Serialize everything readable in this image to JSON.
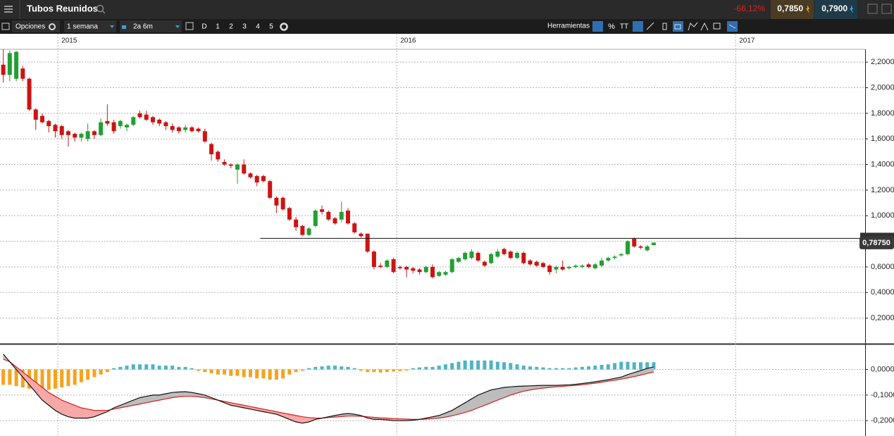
{
  "header": {
    "title": "Tubos Reunidos",
    "change": "-66,12%",
    "bid": "0,7850",
    "ask": "0,7900"
  },
  "toolbar": {
    "options": "Opciones",
    "interval": "1 semana",
    "range": "2a 6m",
    "periods": [
      "D",
      "1",
      "2",
      "3",
      "4",
      "5"
    ],
    "tools": "Herramientas",
    "percent": "%",
    "text_tool": "TT"
  },
  "chart_data": [
    {
      "type": "candlestick",
      "up_color": "#22a032",
      "down_color": "#cc1414",
      "xlim": [
        -0.5,
        132.5
      ],
      "xticks": [
        {
          "value": 8.4,
          "label": "2015"
        },
        {
          "value": 60.5,
          "label": "2016"
        },
        {
          "value": 112.6,
          "label": "2017"
        }
      ],
      "ylim": [
        0,
        2.3
      ],
      "yticks": [
        {
          "value": 0.2,
          "label": "0,2000"
        },
        {
          "value": 0.4,
          "label": "0,4000"
        },
        {
          "value": 0.6,
          "label": "0,6000"
        },
        {
          "value": 0.8,
          "label": "0,8000"
        },
        {
          "value": 1.0,
          "label": "1,0000"
        },
        {
          "value": 1.2,
          "label": "1,2000"
        },
        {
          "value": 1.4,
          "label": "1,4000"
        },
        {
          "value": 1.6,
          "label": "1,6000"
        },
        {
          "value": 1.8,
          "label": "1,8000"
        },
        {
          "value": 2.0,
          "label": "2,0000"
        },
        {
          "value": 2.2,
          "label": "2,2000"
        }
      ],
      "grid": true,
      "hline": 0.823,
      "last_price": {
        "value": 0.7875,
        "label": "0,78750"
      },
      "open": [
        2.18,
        2.1,
        2.07,
        2.15,
        2.07,
        1.83,
        1.78,
        1.74,
        1.71,
        1.7,
        1.66,
        1.64,
        1.61,
        1.6,
        1.66,
        1.63,
        1.74,
        1.73,
        1.7,
        1.69,
        1.71,
        1.8,
        1.79,
        1.77,
        1.75,
        1.73,
        1.7,
        1.69,
        1.67,
        1.69,
        1.68,
        1.66,
        1.56,
        1.5,
        1.42,
        1.4,
        1.36,
        1.4,
        1.33,
        1.31,
        1.31,
        1.27,
        1.14,
        1.14,
        1.06,
        0.97,
        0.92,
        0.85,
        0.92,
        1.05,
        1.03,
        0.98,
        0.97,
        1.04,
        0.94,
        0.86,
        0.86,
        0.72,
        0.61,
        0.6,
        0.66,
        0.6,
        0.6,
        0.59,
        0.58,
        0.56,
        0.6,
        0.53,
        0.54,
        0.56,
        0.64,
        0.66,
        0.67,
        0.71,
        0.64,
        0.63,
        0.68,
        0.74,
        0.72,
        0.67,
        0.71,
        0.65,
        0.64,
        0.63,
        0.61,
        0.58,
        0.6,
        0.59,
        0.6,
        0.6,
        0.62,
        0.59,
        0.61,
        0.65,
        0.67,
        0.69,
        0.7,
        0.82,
        0.76,
        0.73,
        0.77
      ],
      "high": [
        2.3,
        2.29,
        2.29,
        2.17,
        2.08,
        1.84,
        1.8,
        1.75,
        1.72,
        1.71,
        1.67,
        1.65,
        1.65,
        1.72,
        1.67,
        1.76,
        1.87,
        1.75,
        1.75,
        1.72,
        1.78,
        1.82,
        1.82,
        1.78,
        1.76,
        1.74,
        1.72,
        1.7,
        1.71,
        1.7,
        1.69,
        1.68,
        1.57,
        1.51,
        1.44,
        1.41,
        1.41,
        1.44,
        1.34,
        1.32,
        1.32,
        1.28,
        1.15,
        1.15,
        1.07,
        0.99,
        0.93,
        0.91,
        1.05,
        1.08,
        1.04,
        0.99,
        1.11,
        1.06,
        0.95,
        0.87,
        0.86,
        0.73,
        0.63,
        0.66,
        0.67,
        0.61,
        0.61,
        0.6,
        0.59,
        0.61,
        0.62,
        0.57,
        0.57,
        0.67,
        0.68,
        0.72,
        0.74,
        0.72,
        0.65,
        0.71,
        0.74,
        0.75,
        0.73,
        0.72,
        0.72,
        0.66,
        0.65,
        0.64,
        0.62,
        0.61,
        0.65,
        0.61,
        0.62,
        0.62,
        0.63,
        0.63,
        0.67,
        0.68,
        0.69,
        0.71,
        0.81,
        0.83,
        0.77,
        0.77,
        0.79
      ],
      "low": [
        2.04,
        2.05,
        2.05,
        2.05,
        1.82,
        1.67,
        1.72,
        1.65,
        1.61,
        1.6,
        1.54,
        1.58,
        1.58,
        1.58,
        1.6,
        1.62,
        1.7,
        1.64,
        1.68,
        1.66,
        1.7,
        1.76,
        1.74,
        1.71,
        1.7,
        1.67,
        1.65,
        1.64,
        1.65,
        1.65,
        1.65,
        1.57,
        1.43,
        1.42,
        1.39,
        1.37,
        1.25,
        1.32,
        1.29,
        1.23,
        1.26,
        1.13,
        1.02,
        1.04,
        0.96,
        0.88,
        0.84,
        0.84,
        0.91,
        1.01,
        0.96,
        0.93,
        0.95,
        0.93,
        0.86,
        0.83,
        0.71,
        0.58,
        0.59,
        0.59,
        0.55,
        0.58,
        0.52,
        0.55,
        0.54,
        0.55,
        0.51,
        0.52,
        0.53,
        0.55,
        0.63,
        0.65,
        0.66,
        0.64,
        0.6,
        0.62,
        0.67,
        0.69,
        0.66,
        0.66,
        0.62,
        0.61,
        0.6,
        0.59,
        0.54,
        0.55,
        0.57,
        0.58,
        0.59,
        0.59,
        0.59,
        0.58,
        0.6,
        0.64,
        0.66,
        0.68,
        0.69,
        0.75,
        0.74,
        0.72,
        0.77
      ],
      "close": [
        2.1,
        2.27,
        2.28,
        2.07,
        1.83,
        1.75,
        1.73,
        1.7,
        1.66,
        1.63,
        1.63,
        1.61,
        1.64,
        1.66,
        1.63,
        1.73,
        1.72,
        1.66,
        1.74,
        1.71,
        1.77,
        1.77,
        1.75,
        1.73,
        1.72,
        1.7,
        1.67,
        1.66,
        1.69,
        1.66,
        1.66,
        1.58,
        1.48,
        1.44,
        1.4,
        1.39,
        1.4,
        1.33,
        1.3,
        1.26,
        1.27,
        1.14,
        1.08,
        1.05,
        0.97,
        0.91,
        0.85,
        0.9,
        1.04,
        1.03,
        0.97,
        0.94,
        1.03,
        0.94,
        0.87,
        0.84,
        0.72,
        0.6,
        0.6,
        0.65,
        0.56,
        0.59,
        0.58,
        0.57,
        0.56,
        0.6,
        0.52,
        0.56,
        0.56,
        0.66,
        0.67,
        0.71,
        0.72,
        0.65,
        0.61,
        0.7,
        0.72,
        0.7,
        0.67,
        0.71,
        0.63,
        0.62,
        0.61,
        0.6,
        0.56,
        0.6,
        0.58,
        0.6,
        0.61,
        0.61,
        0.6,
        0.62,
        0.65,
        0.67,
        0.68,
        0.7,
        0.8,
        0.76,
        0.75,
        0.76,
        0.79
      ]
    },
    {
      "type": "macd",
      "pos_color": "#4fb4c6",
      "neg_color": "#f5a31e",
      "macd_color": "#111111",
      "signal_color": "#d81e1e",
      "above_fill": "#bdbdbd",
      "below_fill": "#f7a8a8",
      "xlim": [
        -0.5,
        132.5
      ],
      "ylim": [
        -0.26,
        0.095
      ],
      "yticks": [
        {
          "value": 0,
          "label": "0,0000"
        },
        {
          "value": -0.1,
          "label": "-0,1000"
        },
        {
          "value": -0.2,
          "label": "-0,2000"
        }
      ],
      "grid": true,
      "histogram": [
        -0.06,
        -0.06,
        -0.065,
        -0.07,
        -0.075,
        -0.08,
        -0.08,
        -0.08,
        -0.075,
        -0.07,
        -0.065,
        -0.06,
        -0.05,
        -0.04,
        -0.03,
        -0.02,
        -0.01,
        0.005,
        0.01,
        0.015,
        0.02,
        0.02,
        0.02,
        0.02,
        0.015,
        0.015,
        0.015,
        0.01,
        0.01,
        0.005,
        -0.005,
        -0.01,
        -0.015,
        -0.02,
        -0.02,
        -0.025,
        -0.025,
        -0.03,
        -0.03,
        -0.035,
        -0.035,
        -0.04,
        -0.04,
        -0.035,
        -0.02,
        -0.01,
        -0.005,
        0.005,
        0.01,
        0.012,
        0.015,
        0.015,
        0.012,
        0.01,
        0.005,
        -0.005,
        -0.01,
        -0.01,
        -0.012,
        -0.01,
        -0.008,
        -0.006,
        -0.004,
        0.005,
        0.008,
        0.01,
        0.01,
        0.015,
        0.02,
        0.025,
        0.03,
        0.035,
        0.035,
        0.035,
        0.035,
        0.035,
        0.03,
        0.028,
        0.025,
        0.02,
        0.015,
        0.012,
        0.01,
        0.008,
        0.005,
        0.005,
        0.005,
        0.005,
        0.008,
        0.01,
        0.012,
        0.015,
        0.018,
        0.02,
        0.025,
        0.03,
        0.03,
        0.028,
        0.028,
        0.028,
        0.028
      ],
      "macd": [
        0.06,
        0.03,
        0.0,
        -0.03,
        -0.06,
        -0.09,
        -0.12,
        -0.14,
        -0.16,
        -0.175,
        -0.185,
        -0.19,
        -0.19,
        -0.19,
        -0.185,
        -0.175,
        -0.165,
        -0.15,
        -0.14,
        -0.13,
        -0.12,
        -0.11,
        -0.105,
        -0.1,
        -0.1,
        -0.095,
        -0.09,
        -0.088,
        -0.087,
        -0.09,
        -0.095,
        -0.1,
        -0.11,
        -0.12,
        -0.13,
        -0.14,
        -0.145,
        -0.15,
        -0.155,
        -0.16,
        -0.165,
        -0.17,
        -0.175,
        -0.185,
        -0.195,
        -0.205,
        -0.21,
        -0.205,
        -0.195,
        -0.19,
        -0.185,
        -0.18,
        -0.175,
        -0.172,
        -0.175,
        -0.18,
        -0.19,
        -0.195,
        -0.195,
        -0.197,
        -0.2,
        -0.2,
        -0.2,
        -0.198,
        -0.195,
        -0.19,
        -0.185,
        -0.18,
        -0.17,
        -0.16,
        -0.145,
        -0.13,
        -0.115,
        -0.1,
        -0.09,
        -0.08,
        -0.075,
        -0.07,
        -0.068,
        -0.066,
        -0.065,
        -0.064,
        -0.063,
        -0.062,
        -0.062,
        -0.062,
        -0.061,
        -0.06,
        -0.058,
        -0.055,
        -0.052,
        -0.048,
        -0.044,
        -0.04,
        -0.035,
        -0.03,
        -0.02,
        -0.012,
        -0.004,
        0.004,
        0.01
      ],
      "signal": [
        0.04,
        0.03,
        0.01,
        -0.01,
        -0.03,
        -0.05,
        -0.07,
        -0.09,
        -0.105,
        -0.12,
        -0.13,
        -0.14,
        -0.15,
        -0.155,
        -0.16,
        -0.16,
        -0.16,
        -0.155,
        -0.15,
        -0.145,
        -0.14,
        -0.135,
        -0.13,
        -0.125,
        -0.12,
        -0.115,
        -0.11,
        -0.107,
        -0.105,
        -0.105,
        -0.107,
        -0.11,
        -0.115,
        -0.12,
        -0.125,
        -0.13,
        -0.135,
        -0.14,
        -0.145,
        -0.15,
        -0.155,
        -0.16,
        -0.165,
        -0.17,
        -0.175,
        -0.18,
        -0.185,
        -0.188,
        -0.19,
        -0.19,
        -0.188,
        -0.186,
        -0.184,
        -0.182,
        -0.182,
        -0.183,
        -0.185,
        -0.187,
        -0.189,
        -0.19,
        -0.192,
        -0.193,
        -0.194,
        -0.195,
        -0.195,
        -0.194,
        -0.192,
        -0.19,
        -0.186,
        -0.181,
        -0.175,
        -0.168,
        -0.16,
        -0.15,
        -0.14,
        -0.13,
        -0.12,
        -0.11,
        -0.1,
        -0.092,
        -0.085,
        -0.08,
        -0.076,
        -0.073,
        -0.07,
        -0.068,
        -0.066,
        -0.064,
        -0.062,
        -0.06,
        -0.057,
        -0.054,
        -0.05,
        -0.046,
        -0.042,
        -0.038,
        -0.033,
        -0.028,
        -0.022,
        -0.016,
        -0.01
      ]
    }
  ]
}
